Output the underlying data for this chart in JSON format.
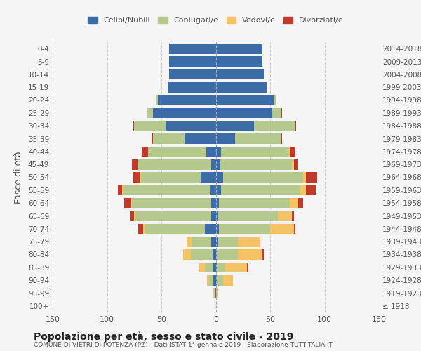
{
  "age_groups": [
    "100+",
    "95-99",
    "90-94",
    "85-89",
    "80-84",
    "75-79",
    "70-74",
    "65-69",
    "60-64",
    "55-59",
    "50-54",
    "45-49",
    "40-44",
    "35-39",
    "30-34",
    "25-29",
    "20-24",
    "15-19",
    "10-14",
    "5-9",
    "0-4"
  ],
  "birth_years": [
    "≤ 1918",
    "1919-1923",
    "1924-1928",
    "1929-1933",
    "1934-1938",
    "1939-1943",
    "1944-1948",
    "1949-1953",
    "1954-1958",
    "1959-1963",
    "1964-1968",
    "1969-1973",
    "1974-1978",
    "1979-1983",
    "1984-1988",
    "1989-1993",
    "1994-1998",
    "1999-2003",
    "2004-2008",
    "2009-2013",
    "2014-2018"
  ],
  "males": {
    "celibi": [
      0,
      1,
      2,
      2,
      3,
      4,
      10,
      4,
      4,
      5,
      14,
      4,
      9,
      29,
      46,
      58,
      53,
      44,
      43,
      43,
      43
    ],
    "coniugati": [
      0,
      0,
      4,
      8,
      20,
      18,
      55,
      70,
      73,
      80,
      55,
      68,
      53,
      29,
      29,
      5,
      2,
      0,
      0,
      0,
      0
    ],
    "vedovi": [
      0,
      1,
      2,
      5,
      7,
      5,
      2,
      1,
      1,
      1,
      1,
      0,
      0,
      0,
      0,
      0,
      0,
      0,
      0,
      0,
      0
    ],
    "divorziati": [
      0,
      0,
      0,
      0,
      0,
      0,
      4,
      4,
      6,
      4,
      6,
      5,
      6,
      1,
      1,
      0,
      0,
      0,
      0,
      0,
      0
    ]
  },
  "females": {
    "nubili": [
      0,
      0,
      1,
      1,
      1,
      2,
      3,
      2,
      3,
      5,
      7,
      4,
      5,
      18,
      35,
      52,
      53,
      47,
      44,
      43,
      43
    ],
    "coniugate": [
      0,
      1,
      6,
      8,
      19,
      18,
      47,
      55,
      65,
      73,
      73,
      66,
      62,
      42,
      38,
      8,
      2,
      0,
      0,
      0,
      0
    ],
    "vedove": [
      0,
      1,
      9,
      20,
      22,
      20,
      22,
      13,
      8,
      5,
      3,
      2,
      2,
      0,
      0,
      0,
      0,
      0,
      0,
      0,
      0
    ],
    "divorziate": [
      0,
      0,
      0,
      1,
      2,
      1,
      1,
      2,
      4,
      9,
      10,
      3,
      4,
      1,
      1,
      1,
      0,
      0,
      0,
      0,
      0
    ]
  },
  "colors": {
    "celibi": "#3c6ca8",
    "coniugati": "#b5c98e",
    "vedovi": "#f5c265",
    "divorziati": "#c0392b"
  },
  "legend_labels": [
    "Celibi/Nubili",
    "Coniugati/e",
    "Vedovi/e",
    "Divorziati/e"
  ],
  "title": "Popolazione per età, sesso e stato civile - 2019",
  "subtitle": "COMUNE DI VIETRI DI POTENZA (PZ) - Dati ISTAT 1° gennaio 2019 - Elaborazione TUTTITALIA.IT",
  "ylabel_left": "Fasce di età",
  "xlim": 150,
  "background_color": "#f5f5f5"
}
